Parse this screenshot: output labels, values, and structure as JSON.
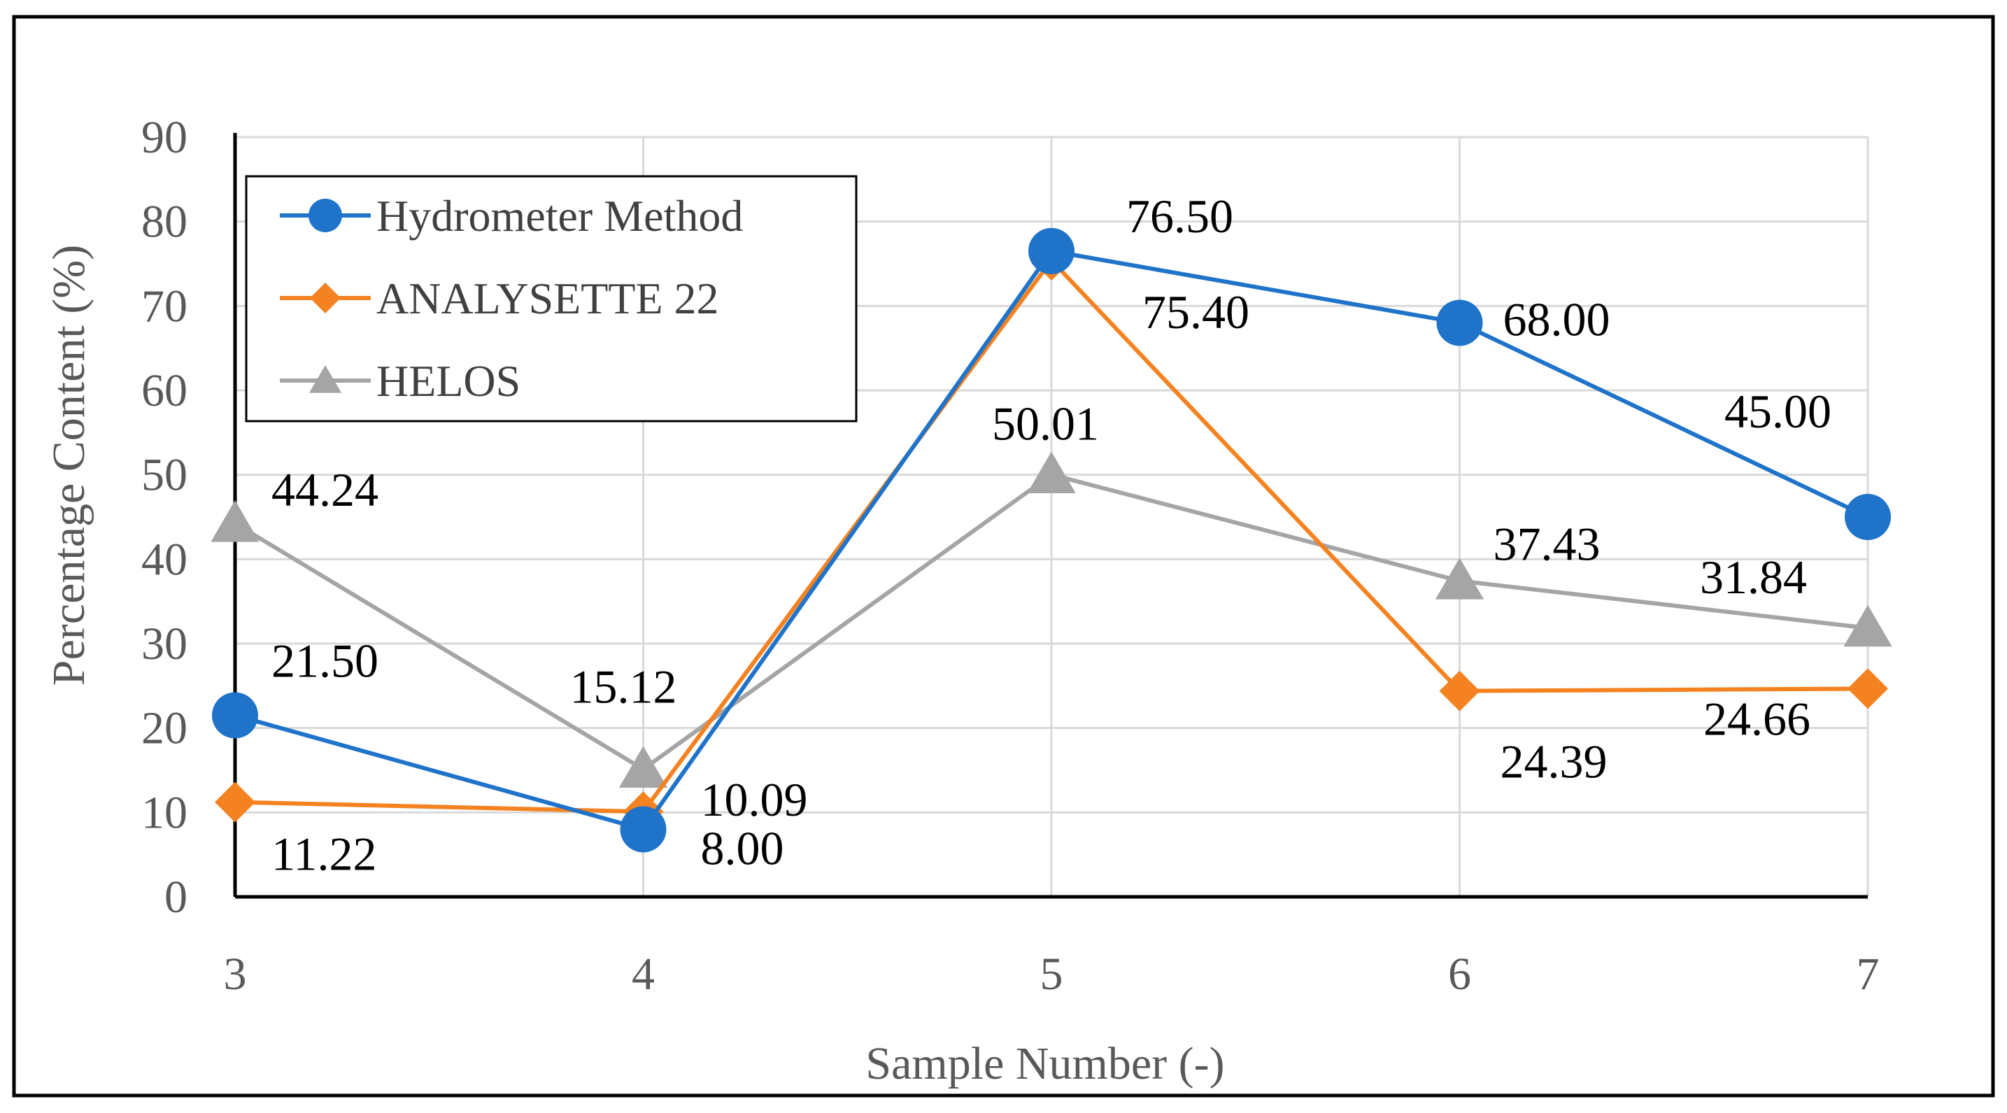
{
  "chart_data": {
    "type": "line",
    "title": "",
    "xlabel": "Sample Number (-)",
    "ylabel": "Percentage Content (%)",
    "categories": [
      "3",
      "4",
      "5",
      "6",
      "7"
    ],
    "ylim": [
      0,
      90
    ],
    "yticks": [
      "0",
      "10",
      "20",
      "30",
      "40",
      "50",
      "60",
      "70",
      "80",
      "90"
    ],
    "grid": true,
    "legend_position": "top-left",
    "series": [
      {
        "name": "Hydrometer Method",
        "marker": "circle",
        "color": "#1F73C9",
        "values": [
          21.5,
          8.0,
          76.5,
          68.0,
          45.0
        ],
        "labels": [
          "21.50",
          "8.00",
          "76.50",
          "68.00",
          "45.00"
        ]
      },
      {
        "name": "ANALYSETTE 22",
        "marker": "diamond",
        "color": "#F58220",
        "values": [
          11.22,
          10.09,
          75.4,
          24.39,
          24.66
        ],
        "labels": [
          "11.22",
          "10.09",
          "75.40",
          "24.39",
          "24.66"
        ]
      },
      {
        "name": "HELOS",
        "marker": "triangle",
        "color": "#A5A5A5",
        "values": [
          44.24,
          15.12,
          50.01,
          37.43,
          31.84
        ],
        "labels": [
          "44.24",
          "15.12",
          "50.01",
          "37.43",
          "31.84"
        ]
      }
    ]
  }
}
